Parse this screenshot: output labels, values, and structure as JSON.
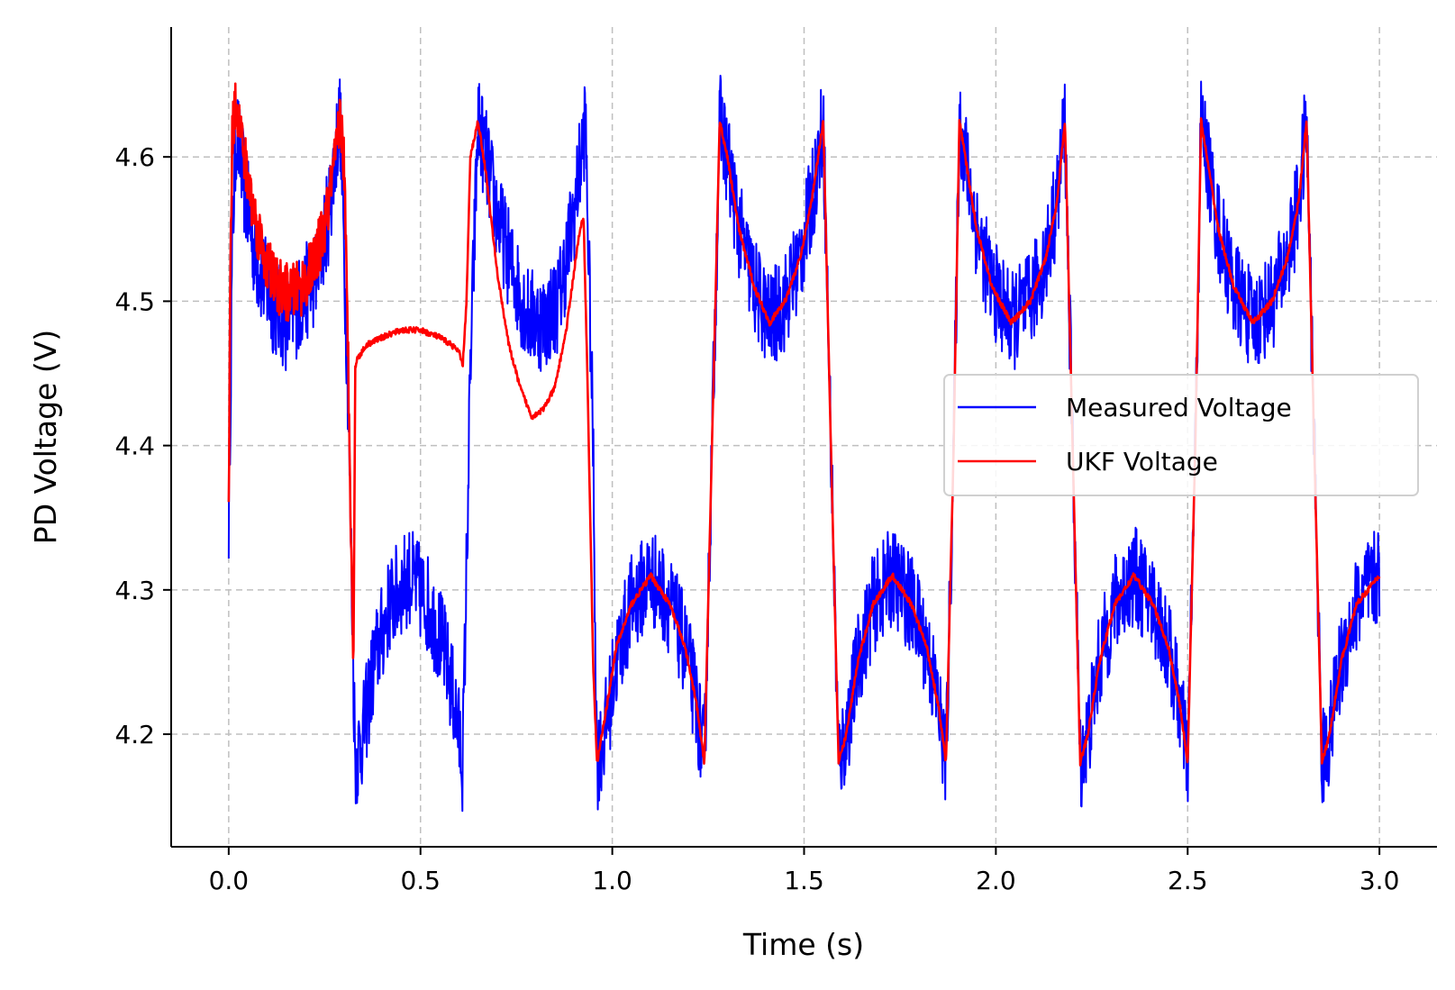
{
  "chart_data": {
    "type": "line",
    "title": "",
    "xlabel": "Time (s)",
    "ylabel": "PD Voltage (V)",
    "xlim": [
      -0.15,
      3.15
    ],
    "ylim": [
      4.122,
      4.69
    ],
    "xticks": [
      0.0,
      0.5,
      1.0,
      1.5,
      2.0,
      2.5,
      3.0
    ],
    "xtick_labels": [
      "0.0",
      "0.5",
      "1.0",
      "1.5",
      "2.0",
      "2.5",
      "3.0"
    ],
    "yticks": [
      4.2,
      4.3,
      4.4,
      4.5,
      4.6
    ],
    "ytick_labels": [
      "4.2",
      "4.3",
      "4.4",
      "4.5",
      "4.6"
    ],
    "grid": true,
    "legend_position": "right",
    "legend_labels": [
      "Measured Voltage",
      "UKF Voltage"
    ],
    "series": [
      {
        "name": "Measured Voltage",
        "color": "#0000ff",
        "noise_amplitude": 0.035,
        "x": [
          0.0,
          0.01,
          0.02,
          0.04,
          0.07,
          0.11,
          0.15,
          0.19,
          0.23,
          0.26,
          0.29,
          0.31,
          0.33,
          0.35,
          0.38,
          0.42,
          0.47,
          0.52,
          0.56,
          0.59,
          0.61,
          0.63,
          0.65,
          0.67,
          0.7,
          0.74,
          0.78,
          0.82,
          0.86,
          0.9,
          0.93,
          0.95,
          0.96,
          0.98,
          1.01,
          1.05,
          1.1,
          1.15,
          1.19,
          1.22,
          1.24,
          1.26,
          1.28,
          1.3,
          1.33,
          1.37,
          1.41,
          1.45,
          1.49,
          1.52,
          1.55,
          1.57,
          1.59,
          1.61,
          1.64,
          1.68,
          1.73,
          1.78,
          1.82,
          1.85,
          1.87,
          1.89,
          1.905,
          1.92,
          1.95,
          1.99,
          2.04,
          2.09,
          2.13,
          2.16,
          2.18,
          2.2,
          2.22,
          2.24,
          2.27,
          2.31,
          2.36,
          2.41,
          2.45,
          2.48,
          2.5,
          2.52,
          2.535,
          2.55,
          2.58,
          2.62,
          2.67,
          2.72,
          2.76,
          2.79,
          2.81,
          2.83,
          2.85,
          2.87,
          2.9,
          2.94,
          3.0
        ],
        "y": [
          4.35,
          4.55,
          4.62,
          4.58,
          4.53,
          4.5,
          4.485,
          4.5,
          4.52,
          4.56,
          4.63,
          4.45,
          4.18,
          4.2,
          4.25,
          4.29,
          4.31,
          4.29,
          4.26,
          4.22,
          4.18,
          4.45,
          4.625,
          4.6,
          4.56,
          4.52,
          4.49,
          4.485,
          4.5,
          4.56,
          4.625,
          4.4,
          4.18,
          4.2,
          4.25,
          4.29,
          4.31,
          4.29,
          4.26,
          4.22,
          4.18,
          4.4,
          4.625,
          4.6,
          4.55,
          4.51,
          4.485,
          4.5,
          4.53,
          4.57,
          4.625,
          4.4,
          4.18,
          4.2,
          4.25,
          4.29,
          4.31,
          4.29,
          4.26,
          4.22,
          4.18,
          4.4,
          4.625,
          4.6,
          4.55,
          4.51,
          4.485,
          4.5,
          4.53,
          4.57,
          4.625,
          4.4,
          4.18,
          4.2,
          4.25,
          4.29,
          4.31,
          4.29,
          4.26,
          4.22,
          4.18,
          4.4,
          4.625,
          4.6,
          4.55,
          4.51,
          4.485,
          4.5,
          4.53,
          4.57,
          4.625,
          4.4,
          4.18,
          4.2,
          4.25,
          4.29,
          4.31
        ]
      },
      {
        "name": "UKF Voltage",
        "color": "#ff0000",
        "x": [
          0.0,
          0.005,
          0.01,
          0.02,
          0.04,
          0.07,
          0.1,
          0.13,
          0.16,
          0.19,
          0.22,
          0.25,
          0.28,
          0.29,
          0.3,
          0.31,
          0.32,
          0.325,
          0.33,
          0.335,
          0.36,
          0.4,
          0.45,
          0.5,
          0.55,
          0.58,
          0.6,
          0.61,
          0.62,
          0.63,
          0.65,
          0.67,
          0.7,
          0.73,
          0.76,
          0.79,
          0.82,
          0.85,
          0.88,
          0.91,
          0.925,
          0.935,
          0.95,
          0.96,
          0.98,
          1.01,
          1.05,
          1.1,
          1.15,
          1.19,
          1.22,
          1.24,
          1.26,
          1.28,
          1.3,
          1.33,
          1.37,
          1.41,
          1.45,
          1.49,
          1.52,
          1.55,
          1.57,
          1.59,
          1.61,
          1.64,
          1.68,
          1.73,
          1.78,
          1.82,
          1.85,
          1.87,
          1.89,
          1.905,
          1.92,
          1.95,
          1.99,
          2.04,
          2.09,
          2.13,
          2.16,
          2.18,
          2.2,
          2.22,
          2.24,
          2.27,
          2.31,
          2.36,
          2.41,
          2.45,
          2.48,
          2.5,
          2.52,
          2.535,
          2.55,
          2.58,
          2.62,
          2.67,
          2.72,
          2.76,
          2.79,
          2.81,
          2.83,
          2.85,
          2.87,
          2.9,
          2.94,
          3.0
        ],
        "y": [
          4.35,
          4.55,
          4.62,
          4.64,
          4.6,
          4.555,
          4.525,
          4.51,
          4.505,
          4.51,
          4.525,
          4.55,
          4.6,
          4.63,
          4.6,
          4.48,
          4.33,
          4.24,
          4.455,
          4.46,
          4.47,
          4.475,
          4.48,
          4.48,
          4.475,
          4.47,
          4.465,
          4.455,
          4.5,
          4.6,
          4.625,
          4.59,
          4.52,
          4.47,
          4.44,
          4.42,
          4.425,
          4.44,
          4.48,
          4.54,
          4.56,
          4.45,
          4.25,
          4.18,
          4.21,
          4.26,
          4.29,
          4.31,
          4.29,
          4.26,
          4.22,
          4.18,
          4.4,
          4.625,
          4.6,
          4.55,
          4.51,
          4.485,
          4.5,
          4.53,
          4.57,
          4.625,
          4.4,
          4.18,
          4.2,
          4.25,
          4.29,
          4.31,
          4.29,
          4.26,
          4.22,
          4.18,
          4.4,
          4.625,
          4.6,
          4.55,
          4.51,
          4.485,
          4.5,
          4.53,
          4.57,
          4.625,
          4.4,
          4.18,
          4.2,
          4.25,
          4.29,
          4.31,
          4.29,
          4.26,
          4.22,
          4.18,
          4.4,
          4.625,
          4.6,
          4.55,
          4.51,
          4.485,
          4.5,
          4.53,
          4.57,
          4.625,
          4.4,
          4.18,
          4.2,
          4.25,
          4.29,
          4.31
        ]
      }
    ]
  }
}
